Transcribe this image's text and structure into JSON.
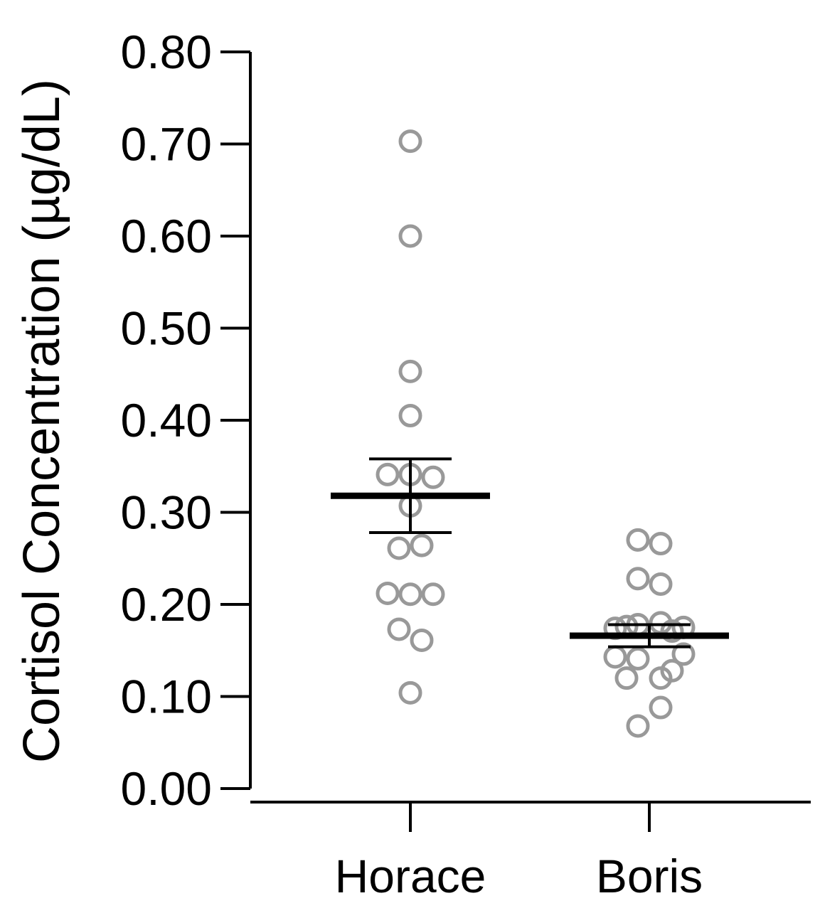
{
  "chart_data": {
    "type": "scatter",
    "title": "",
    "xlabel": "",
    "ylabel": "Cortisol Concentration (µg/dL)",
    "ylim": [
      0,
      0.8
    ],
    "yticks": [
      "0.00",
      "0.10",
      "0.20",
      "0.30",
      "0.40",
      "0.50",
      "0.60",
      "0.70",
      "0.80"
    ],
    "categories": [
      "Horace",
      "Boris"
    ],
    "series": [
      {
        "category": "Horace",
        "mean": 0.318,
        "error_upper": 0.358,
        "error_lower": 0.278,
        "points": [
          {
            "offset": 0,
            "y": 0.703
          },
          {
            "offset": 0,
            "y": 0.6
          },
          {
            "offset": 0,
            "y": 0.453
          },
          {
            "offset": 0,
            "y": 0.405
          },
          {
            "offset": -1,
            "y": 0.341
          },
          {
            "offset": 0,
            "y": 0.341
          },
          {
            "offset": 1,
            "y": 0.338
          },
          {
            "offset": 0,
            "y": 0.307
          },
          {
            "offset": -0.5,
            "y": 0.261
          },
          {
            "offset": 0.5,
            "y": 0.264
          },
          {
            "offset": -1,
            "y": 0.212
          },
          {
            "offset": 0,
            "y": 0.211
          },
          {
            "offset": 1,
            "y": 0.211
          },
          {
            "offset": -0.5,
            "y": 0.173
          },
          {
            "offset": 0.5,
            "y": 0.161
          },
          {
            "offset": 0,
            "y": 0.104
          }
        ]
      },
      {
        "category": "Boris",
        "mean": 0.166,
        "error_upper": 0.178,
        "error_lower": 0.154,
        "points": [
          {
            "offset": -0.5,
            "y": 0.27
          },
          {
            "offset": 0.5,
            "y": 0.266
          },
          {
            "offset": -0.5,
            "y": 0.228
          },
          {
            "offset": 0.5,
            "y": 0.222
          },
          {
            "offset": -1.5,
            "y": 0.174
          },
          {
            "offset": -1,
            "y": 0.176
          },
          {
            "offset": -0.5,
            "y": 0.178
          },
          {
            "offset": 0.5,
            "y": 0.18
          },
          {
            "offset": 1,
            "y": 0.171
          },
          {
            "offset": 1.5,
            "y": 0.175
          },
          {
            "offset": -1.5,
            "y": 0.143
          },
          {
            "offset": -0.5,
            "y": 0.141
          },
          {
            "offset": 1.5,
            "y": 0.146
          },
          {
            "offset": -1,
            "y": 0.12
          },
          {
            "offset": 0.5,
            "y": 0.12
          },
          {
            "offset": 1,
            "y": 0.128
          },
          {
            "offset": 0.5,
            "y": 0.088
          },
          {
            "offset": -0.5,
            "y": 0.068
          }
        ]
      }
    ],
    "colors": {
      "points": "#999999",
      "lines": "#000000"
    }
  }
}
